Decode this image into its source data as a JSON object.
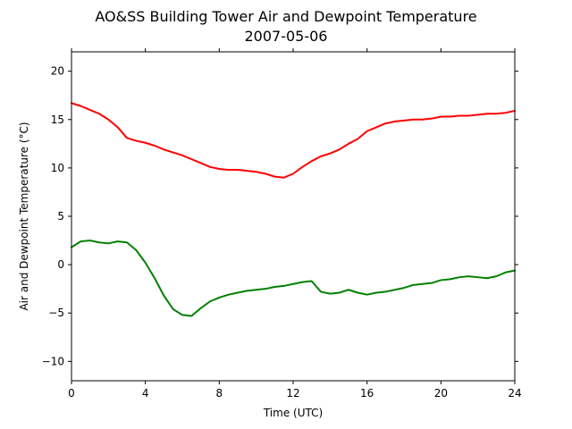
{
  "chart_data": {
    "type": "line",
    "title": "AO&SS Building Tower Air and Dewpoint Temperature",
    "subtitle": "2007-05-06",
    "xlabel": "Time (UTC)",
    "ylabel": "Air and Dewpoint Temperature (°C)",
    "xlim": [
      0,
      24
    ],
    "ylim": [
      -12,
      22
    ],
    "xticks": [
      "0",
      "4",
      "8",
      "12",
      "16",
      "20",
      "24"
    ],
    "yticks": [
      "−10",
      "−5",
      "0",
      "5",
      "10",
      "15",
      "20"
    ],
    "grid": false,
    "legend": "none",
    "series": [
      {
        "color": "#ff0000",
        "x": [
          0,
          0.5,
          1,
          1.5,
          2,
          2.5,
          3,
          3.5,
          4,
          4.5,
          5,
          5.5,
          6,
          6.5,
          7,
          7.5,
          8,
          8.5,
          9,
          9.5,
          10,
          10.5,
          11,
          11.5,
          12,
          12.5,
          13,
          13.5,
          14,
          14.5,
          15,
          15.5,
          16,
          16.5,
          17,
          17.5,
          18,
          18.5,
          19,
          19.5,
          20,
          20.5,
          21,
          21.5,
          22,
          22.5,
          23,
          23.5,
          24
        ],
        "y": [
          16.7,
          16.4,
          16.0,
          15.6,
          15.0,
          14.2,
          13.1,
          12.8,
          12.6,
          12.3,
          11.9,
          11.6,
          11.3,
          10.9,
          10.5,
          10.1,
          9.9,
          9.8,
          9.8,
          9.7,
          9.6,
          9.4,
          9.1,
          9.0,
          9.4,
          10.1,
          10.7,
          11.2,
          11.5,
          11.9,
          12.5,
          13.0,
          13.8,
          14.2,
          14.6,
          14.8,
          14.9,
          15.0,
          15.0,
          15.1,
          15.3,
          15.3,
          15.4,
          15.4,
          15.5,
          15.6,
          15.6,
          15.7,
          15.9
        ]
      },
      {
        "color": "#008000",
        "x": [
          0,
          0.5,
          1,
          1.5,
          2,
          2.5,
          3,
          3.5,
          4,
          4.5,
          5,
          5.5,
          6,
          6.5,
          7,
          7.5,
          8,
          8.5,
          9,
          9.5,
          10,
          10.5,
          11,
          11.5,
          12,
          12.5,
          13,
          13.5,
          14,
          14.5,
          15,
          15.5,
          16,
          16.5,
          17,
          17.5,
          18,
          18.5,
          19,
          19.5,
          20,
          20.5,
          21,
          21.5,
          22,
          22.5,
          23,
          23.5,
          24
        ],
        "y": [
          1.8,
          2.4,
          2.5,
          2.3,
          2.2,
          2.4,
          2.3,
          1.5,
          0.2,
          -1.4,
          -3.2,
          -4.6,
          -5.2,
          -5.3,
          -4.5,
          -3.8,
          -3.4,
          -3.1,
          -2.9,
          -2.7,
          -2.6,
          -2.5,
          -2.3,
          -2.2,
          -2.0,
          -1.8,
          -1.7,
          -2.8,
          -3.0,
          -2.9,
          -2.6,
          -2.9,
          -3.1,
          -2.9,
          -2.8,
          -2.6,
          -2.4,
          -2.1,
          -2.0,
          -1.9,
          -1.6,
          -1.5,
          -1.3,
          -1.2,
          -1.3,
          -1.4,
          -1.2,
          -0.8,
          -0.6
        ]
      }
    ]
  }
}
